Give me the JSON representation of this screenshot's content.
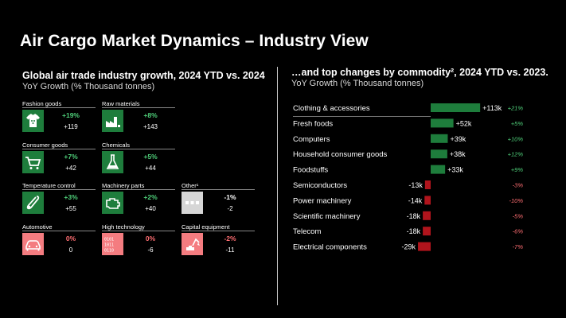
{
  "title": "Air Cargo Market Dynamics – Industry View",
  "left_panel": {
    "heading": "Global air trade industry growth, 2024 YTD vs. 2024",
    "subheading": "YoY Growth (% Thousand tonnes)",
    "tiles": [
      {
        "name": "Fashion goods",
        "pct": "+19%",
        "abs": "+119",
        "status": "positive",
        "icon": "tshirt-icon"
      },
      {
        "name": "Raw materials",
        "pct": "+8%",
        "abs": "+143",
        "status": "positive",
        "icon": "factory-icon"
      },
      {
        "name": "Consumer goods",
        "pct": "+7%",
        "abs": "+42",
        "status": "positive",
        "icon": "shopping-cart-icon"
      },
      {
        "name": "Chemicals",
        "pct": "+5%",
        "abs": "+44",
        "status": "positive",
        "icon": "flask-icon"
      },
      {
        "name": "Temperature control",
        "pct": "+3%",
        "abs": "+55",
        "status": "positive",
        "icon": "thermometer-icon"
      },
      {
        "name": "Machinery parts",
        "pct": "+2%",
        "abs": "+40",
        "status": "positive",
        "icon": "engine-icon"
      },
      {
        "name": "Other¹",
        "pct": "-1%",
        "abs": "-2",
        "status": "neutral",
        "icon": "dots-icon"
      },
      {
        "name": "Automotive",
        "pct": "0%",
        "abs": "0",
        "status": "negative",
        "icon": "car-icon"
      },
      {
        "name": "High technology",
        "pct": "0%",
        "abs": "-6",
        "status": "negative",
        "icon": "binary-code-icon"
      },
      {
        "name": "Capital equipment",
        "pct": "-2%",
        "abs": "-11",
        "status": "negative",
        "icon": "excavator-icon"
      }
    ]
  },
  "right_panel": {
    "heading": "…and top changes by commodity², 2024 YTD vs. 2023.",
    "subheading": "YoY Growth (% Thousand tonnes)"
  },
  "colors": {
    "positive": "#1e7d3c",
    "negative": "#b0141c",
    "neutral": "#d6d6d6",
    "negative_tile": "#f47c80",
    "positive_text": "#4fd07a",
    "negative_text": "#ff6e72"
  },
  "chart_data": {
    "type": "bar",
    "orientation": "horizontal",
    "categories": [
      "Clothing & accessories",
      "Fresh foods",
      "Computers",
      "Household consumer goods",
      "Foodstuffs",
      "Semiconductors",
      "Power machinery",
      "Scientific machinery",
      "Telecom",
      "Electrical components"
    ],
    "values": [
      113,
      52,
      39,
      38,
      33,
      -13,
      -14,
      -18,
      -18,
      -29
    ],
    "value_labels": [
      "+113k",
      "+52k",
      "+39k",
      "+38k",
      "+33k",
      "-13k",
      "-14k",
      "-18k",
      "-18k",
      "-29k"
    ],
    "pct_labels": [
      "+21%",
      "+5%",
      "+10%",
      "+12%",
      "+9%",
      "-3%",
      "-10%",
      "-5%",
      "-6%",
      "-7%"
    ],
    "xlim": [
      -40,
      120
    ]
  }
}
